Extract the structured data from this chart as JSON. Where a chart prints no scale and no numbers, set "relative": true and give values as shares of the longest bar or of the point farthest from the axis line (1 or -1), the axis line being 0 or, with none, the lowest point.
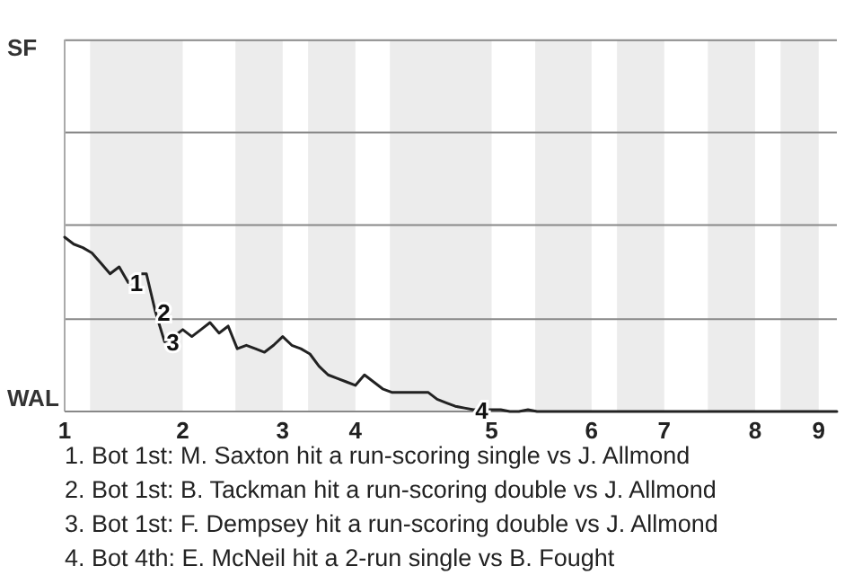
{
  "chart_data": {
    "type": "line",
    "relative": true,
    "categories": [
      "1",
      null,
      null,
      null,
      null,
      null,
      null,
      null,
      null,
      null,
      null,
      null,
      null,
      "2",
      null,
      null,
      null,
      null,
      null,
      null,
      null,
      null,
      null,
      null,
      "3",
      null,
      null,
      null,
      null,
      null,
      null,
      null,
      "4",
      null,
      null,
      null,
      null,
      null,
      null,
      null,
      null,
      null,
      null,
      null,
      null,
      null,
      null,
      "5",
      null,
      null,
      null,
      null,
      null,
      null,
      null,
      null,
      null,
      null,
      "6",
      null,
      null,
      null,
      null,
      null,
      null,
      null,
      "7",
      null,
      null,
      null,
      null,
      null,
      null,
      null,
      null,
      null,
      "8",
      null,
      null,
      null,
      null,
      null,
      null,
      "9",
      null,
      null
    ],
    "marker": "none",
    "line_style": "solid",
    "ref_lines": [
      {
        "axis": "y",
        "value": 0.53,
        "color": "#888888"
      },
      {
        "axis": "y",
        "value": 1.07,
        "color": "#888888"
      },
      {
        "axis": "y",
        "value": 1.6,
        "color": "#888888"
      },
      {
        "axis": "y",
        "value": 2.13,
        "color": "#888888"
      }
    ],
    "series": [
      {
        "color": "#222222",
        "values": [
          1,
          0.96,
          0.94,
          0.91,
          0.85,
          0.79,
          0.83,
          0.74,
          0.79,
          0.79,
          0.57,
          0.4,
          0.43,
          0.47,
          0.43,
          0.47,
          0.51,
          0.45,
          0.49,
          0.36,
          0.38,
          0.36,
          0.34,
          0.38,
          0.43,
          0.38,
          0.36,
          0.33,
          0.26,
          0.21,
          0.19,
          0.17,
          0.15,
          0.21,
          0.17,
          0.13,
          0.11,
          0.11,
          0.11,
          0.11,
          0.11,
          0.07,
          0.05,
          0.03,
          0.02,
          0.01,
          0.01,
          0.01,
          0.01,
          0,
          0,
          0.01,
          0,
          0,
          0,
          0,
          0,
          0,
          0,
          0,
          0,
          0,
          0,
          0,
          0,
          0,
          0,
          0,
          0,
          0,
          0,
          0,
          0,
          0,
          0,
          0,
          0,
          0,
          0,
          0,
          0,
          0,
          0,
          0,
          0,
          0
        ]
      }
    ],
    "annotations": [
      "SF",
      "WAL",
      {
        "text": "1",
        "y": 0.74
      },
      {
        "text": "2",
        "y": 0.57
      },
      {
        "text": "3",
        "y": 0.4
      },
      {
        "text": "4",
        "y": 0.01
      },
      "1. Bot 1st: M. Saxton hit a run-scoring single vs J. Allmond",
      "2. Bot 1st: B. Tackman hit a run-scoring double vs J. Allmond",
      "3. Bot 1st: F. Dempsey hit a run-scoring double vs J. Allmond",
      "4. Bot 4th: E. McNeil hit a 2-run single vs B. Fought"
    ]
  }
}
